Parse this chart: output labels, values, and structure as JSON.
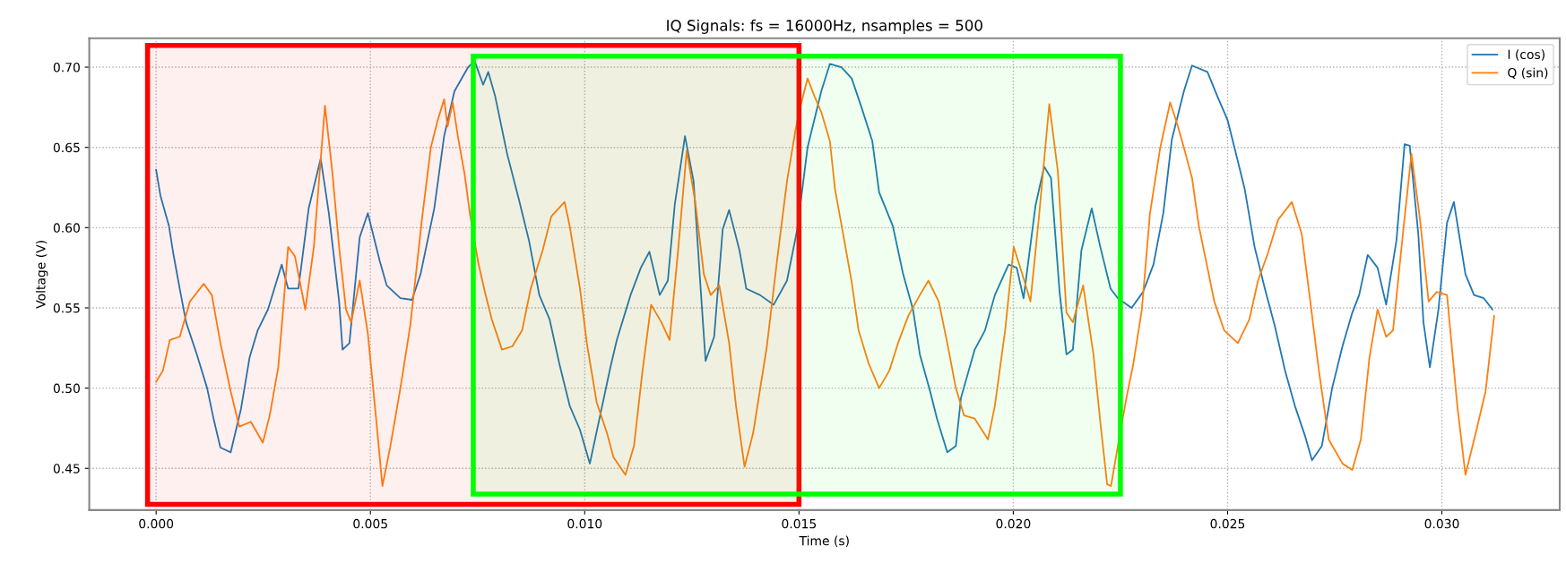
{
  "chart_data": {
    "type": "line",
    "title": "IQ Signals: fs = 16000Hz, nsamples = 500",
    "xlabel": "Time (s)",
    "ylabel": "Voltage (V)",
    "series": [
      {
        "name": "I (cos)",
        "color": "#1f77b4",
        "x": [
          0,
          0.0001,
          0.0003,
          0.0004,
          0.00055,
          0.0007,
          0.00095,
          0.00119,
          0.00134,
          0.0015,
          0.00174,
          0.00198,
          0.00218,
          0.00237,
          0.00261,
          0.00293,
          0.00308,
          0.00332,
          0.00356,
          0.00384,
          0.00403,
          0.00427,
          0.00435,
          0.00451,
          0.00475,
          0.00494,
          0.00522,
          0.00538,
          0.0057,
          0.00597,
          0.00617,
          0.00649,
          0.00672,
          0.00696,
          0.00728,
          0.00743,
          0.00763,
          0.00775,
          0.00791,
          0.00819,
          0.00846,
          0.0087,
          0.00894,
          0.00918,
          0.00941,
          0.00965,
          0.00989,
          0.01012,
          0.01036,
          0.0106,
          0.01075,
          0.01107,
          0.01131,
          0.01151,
          0.01175,
          0.01194,
          0.0121,
          0.01234,
          0.01254,
          0.0127,
          0.01282,
          0.01302,
          0.01322,
          0.01337,
          0.01361,
          0.01377,
          0.01409,
          0.01441,
          0.01472,
          0.01496,
          0.0152,
          0.01552,
          0.01572,
          0.01599,
          0.01623,
          0.01647,
          0.01671,
          0.01687,
          0.01719,
          0.01743,
          0.01766,
          0.01782,
          0.01806,
          0.01822,
          0.01846,
          0.01866,
          0.01878,
          0.0191,
          0.01934,
          0.01957,
          0.01989,
          0.02008,
          0.02024,
          0.02052,
          0.02072,
          0.02088,
          0.02108,
          0.02124,
          0.02139,
          0.02159,
          0.02183,
          0.02203,
          0.02227,
          0.02244,
          0.02276,
          0.02303,
          0.02327,
          0.0235,
          0.0237,
          0.02398,
          0.02417,
          0.02453,
          0.02476,
          0.025,
          0.02516,
          0.0254,
          0.02563,
          0.02587,
          0.0261,
          0.02634,
          0.02657,
          0.02681,
          0.02697,
          0.0272,
          0.02744,
          0.02768,
          0.02791,
          0.02807,
          0.02827,
          0.0285,
          0.0287,
          0.02894,
          0.02913,
          0.02925,
          0.02945,
          0.02957,
          0.02972,
          0.02992,
          0.03012,
          0.03028,
          0.03055,
          0.03075,
          0.03098,
          0.03118
        ],
        "values": [
          0.636,
          0.62,
          0.601,
          0.584,
          0.562,
          0.541,
          0.521,
          0.5,
          0.481,
          0.463,
          0.46,
          0.487,
          0.519,
          0.536,
          0.549,
          0.577,
          0.562,
          0.562,
          0.612,
          0.643,
          0.609,
          0.554,
          0.524,
          0.528,
          0.594,
          0.609,
          0.579,
          0.564,
          0.556,
          0.555,
          0.571,
          0.612,
          0.657,
          0.685,
          0.7,
          0.704,
          0.689,
          0.697,
          0.682,
          0.646,
          0.618,
          0.592,
          0.558,
          0.543,
          0.515,
          0.489,
          0.474,
          0.453,
          0.483,
          0.513,
          0.53,
          0.558,
          0.575,
          0.585,
          0.558,
          0.567,
          0.614,
          0.657,
          0.629,
          0.564,
          0.517,
          0.532,
          0.599,
          0.611,
          0.586,
          0.562,
          0.558,
          0.552,
          0.567,
          0.599,
          0.65,
          0.685,
          0.702,
          0.7,
          0.693,
          0.674,
          0.654,
          0.622,
          0.601,
          0.571,
          0.549,
          0.521,
          0.498,
          0.481,
          0.46,
          0.464,
          0.494,
          0.524,
          0.536,
          0.558,
          0.577,
          0.575,
          0.556,
          0.614,
          0.638,
          0.631,
          0.56,
          0.521,
          0.524,
          0.586,
          0.612,
          0.588,
          0.562,
          0.556,
          0.55,
          0.56,
          0.577,
          0.609,
          0.655,
          0.685,
          0.701,
          0.697,
          0.682,
          0.667,
          0.65,
          0.624,
          0.588,
          0.562,
          0.539,
          0.511,
          0.489,
          0.47,
          0.455,
          0.464,
          0.5,
          0.526,
          0.547,
          0.558,
          0.583,
          0.575,
          0.552,
          0.592,
          0.652,
          0.651,
          0.596,
          0.541,
          0.513,
          0.549,
          0.603,
          0.616,
          0.571,
          0.558,
          0.556,
          0.549
        ]
      },
      {
        "name": "Q (sin)",
        "color": "#ff7f0e",
        "x": [
          0,
          0.00016,
          0.00032,
          0.00055,
          0.00079,
          0.00111,
          0.0013,
          0.0015,
          0.00174,
          0.00194,
          0.00221,
          0.00249,
          0.00265,
          0.00285,
          0.00297,
          0.00308,
          0.00324,
          0.00348,
          0.00368,
          0.0038,
          0.00394,
          0.00411,
          0.00427,
          0.00443,
          0.00455,
          0.00475,
          0.00494,
          0.00514,
          0.00528,
          0.00546,
          0.0057,
          0.00593,
          0.00621,
          0.00641,
          0.00657,
          0.00672,
          0.0068,
          0.00692,
          0.00704,
          0.0072,
          0.00732,
          0.00751,
          0.00767,
          0.00783,
          0.00807,
          0.00831,
          0.00854,
          0.00874,
          0.00902,
          0.00922,
          0.00953,
          0.00965,
          0.00989,
          0.01005,
          0.01028,
          0.01052,
          0.01067,
          0.01095,
          0.01115,
          0.01135,
          0.01155,
          0.01179,
          0.01198,
          0.01218,
          0.01238,
          0.01258,
          0.01278,
          0.01294,
          0.01314,
          0.01337,
          0.01353,
          0.01373,
          0.01393,
          0.01425,
          0.01449,
          0.01472,
          0.01492,
          0.01504,
          0.0152,
          0.01536,
          0.01552,
          0.01572,
          0.01584,
          0.01603,
          0.01623,
          0.01639,
          0.01663,
          0.01687,
          0.01711,
          0.01731,
          0.01755,
          0.01782,
          0.01802,
          0.01826,
          0.01846,
          0.01866,
          0.01885,
          0.0191,
          0.01941,
          0.01957,
          0.01981,
          0.02001,
          0.02021,
          0.0204,
          0.0206,
          0.02084,
          0.02104,
          0.02124,
          0.02139,
          0.02163,
          0.02187,
          0.02203,
          0.02219,
          0.02228,
          0.02244,
          0.02264,
          0.0228,
          0.023,
          0.02319,
          0.02343,
          0.02366,
          0.02382,
          0.02398,
          0.02417,
          0.02433,
          0.02453,
          0.02469,
          0.02492,
          0.02524,
          0.02551,
          0.02571,
          0.02594,
          0.02618,
          0.0265,
          0.02673,
          0.02693,
          0.02713,
          0.02736,
          0.02768,
          0.02791,
          0.02811,
          0.02831,
          0.0285,
          0.0287,
          0.02886,
          0.02909,
          0.02929,
          0.02949,
          0.02969,
          0.02988,
          0.03012,
          0.03036,
          0.03055,
          0.03079,
          0.03102,
          0.03122
        ],
        "values": [
          0.504,
          0.511,
          0.53,
          0.532,
          0.554,
          0.565,
          0.558,
          0.528,
          0.498,
          0.476,
          0.479,
          0.466,
          0.483,
          0.513,
          0.551,
          0.588,
          0.582,
          0.549,
          0.588,
          0.629,
          0.676,
          0.635,
          0.588,
          0.549,
          0.541,
          0.567,
          0.534,
          0.479,
          0.439,
          0.463,
          0.5,
          0.539,
          0.607,
          0.65,
          0.667,
          0.68,
          0.663,
          0.678,
          0.657,
          0.633,
          0.609,
          0.579,
          0.56,
          0.543,
          0.524,
          0.526,
          0.536,
          0.562,
          0.586,
          0.607,
          0.616,
          0.601,
          0.562,
          0.528,
          0.491,
          0.472,
          0.457,
          0.446,
          0.464,
          0.511,
          0.552,
          0.541,
          0.53,
          0.586,
          0.648,
          0.616,
          0.571,
          0.558,
          0.564,
          0.528,
          0.489,
          0.451,
          0.472,
          0.526,
          0.58,
          0.629,
          0.661,
          0.676,
          0.693,
          0.682,
          0.672,
          0.654,
          0.624,
          0.596,
          0.566,
          0.536,
          0.515,
          0.5,
          0.511,
          0.528,
          0.545,
          0.558,
          0.567,
          0.554,
          0.528,
          0.5,
          0.483,
          0.481,
          0.468,
          0.489,
          0.536,
          0.588,
          0.571,
          0.554,
          0.607,
          0.677,
          0.635,
          0.547,
          0.541,
          0.564,
          0.521,
          0.479,
          0.44,
          0.439,
          0.464,
          0.494,
          0.515,
          0.549,
          0.609,
          0.65,
          0.678,
          0.665,
          0.65,
          0.631,
          0.601,
          0.575,
          0.554,
          0.536,
          0.528,
          0.543,
          0.567,
          0.584,
          0.605,
          0.616,
          0.596,
          0.554,
          0.511,
          0.468,
          0.453,
          0.449,
          0.468,
          0.519,
          0.549,
          0.532,
          0.536,
          0.596,
          0.646,
          0.605,
          0.554,
          0.56,
          0.558,
          0.489,
          0.446,
          0.472,
          0.498,
          0.545
        ]
      }
    ],
    "xlim": [
      -0.00156,
      0.03275
    ],
    "ylim": [
      0.424,
      0.718
    ],
    "xticks": [
      {
        "value": 0,
        "label": "0.000"
      },
      {
        "value": 0.005,
        "label": "0.005"
      },
      {
        "value": 0.01,
        "label": "0.010"
      },
      {
        "value": 0.015,
        "label": "0.015"
      },
      {
        "value": 0.02,
        "label": "0.020"
      },
      {
        "value": 0.025,
        "label": "0.025"
      },
      {
        "value": 0.03,
        "label": "0.030"
      }
    ],
    "yticks": [
      {
        "value": 0.45,
        "label": "0.45"
      },
      {
        "value": 0.5,
        "label": "0.50"
      },
      {
        "value": 0.55,
        "label": "0.55"
      },
      {
        "value": 0.6,
        "label": "0.60"
      },
      {
        "value": 0.65,
        "label": "0.65"
      },
      {
        "value": 0.7,
        "label": "0.70"
      }
    ],
    "grid": true,
    "legend": "top right",
    "line_style": "solid",
    "marker": "none",
    "bands": [
      {
        "axis": "x",
        "from": -0.0002,
        "to": 0.015,
        "color": "#ff0000"
      },
      {
        "axis": "x",
        "from": 0.0074,
        "to": 0.0225,
        "color": "#00ff00"
      }
    ]
  }
}
